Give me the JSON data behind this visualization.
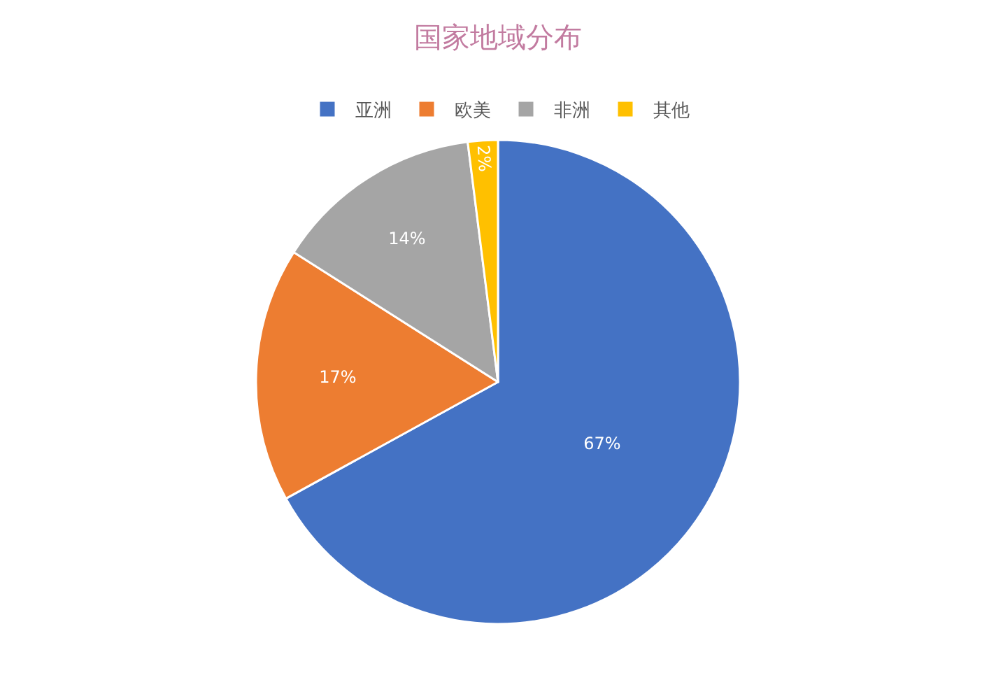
{
  "chart_data": {
    "type": "pie",
    "title": "国家地域分布",
    "categories": [
      "亚洲",
      "欧美",
      "非洲",
      "其他"
    ],
    "values": [
      67,
      17,
      14,
      2
    ],
    "colors": [
      "#4472c4",
      "#ed7d31",
      "#a5a5a5",
      "#ffc000"
    ],
    "value_labels": [
      "67%",
      "17%",
      "14%",
      "2%"
    ],
    "legend": "top"
  }
}
